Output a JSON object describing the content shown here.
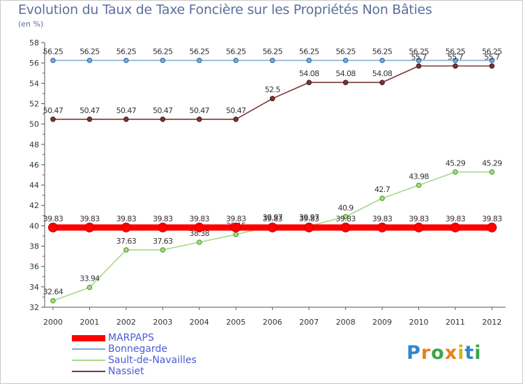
{
  "title": "Evolution du Taux de Taxe Foncière sur les Propriétés Non Bâties",
  "subtitle": "(en %)",
  "logo": {
    "letters": [
      "P",
      "r",
      "o",
      "x",
      "i",
      "t",
      "i"
    ],
    "colors": [
      "#2f86cf",
      "#e8801c",
      "#3aa64a",
      "#e8801c",
      "#d7b31e",
      "#2f86cf",
      "#3aa64a"
    ]
  },
  "chart_data": {
    "type": "line",
    "x": [
      "2000",
      "2001",
      "2002",
      "2003",
      "2004",
      "2005",
      "2006",
      "2007",
      "2008",
      "2009",
      "2010",
      "2011",
      "2012"
    ],
    "ylim": [
      32,
      58
    ],
    "yticks": [
      "32",
      "34",
      "36",
      "38",
      "40",
      "42",
      "44",
      "46",
      "48",
      "50",
      "52",
      "54",
      "56",
      "58"
    ],
    "grid": false,
    "legend_position": "bottom-left",
    "series": [
      {
        "name": "MARPAPS",
        "color": "#ff0000",
        "values": [
          39.83,
          39.83,
          39.83,
          39.83,
          39.83,
          39.83,
          39.83,
          39.83,
          39.83,
          39.83,
          39.83,
          39.83,
          39.83
        ],
        "labels": [
          "39.83",
          "39.83",
          "39.83",
          "39.83",
          "39.83",
          "39.83",
          "39.83",
          "39.83",
          "39.83",
          "39.83",
          "39.83",
          "39.83",
          "39.83"
        ]
      },
      {
        "name": "Bonnegarde",
        "color": "#7fa8d6",
        "values": [
          56.25,
          56.25,
          56.25,
          56.25,
          56.25,
          56.25,
          56.25,
          56.25,
          56.25,
          56.25,
          56.25,
          56.25,
          56.25
        ],
        "labels": [
          "56.25",
          "56.25",
          "56.25",
          "56.25",
          "56.25",
          "56.25",
          "56.25",
          "56.25",
          "56.25",
          "56.25",
          "56.25",
          "56.25",
          "56.25"
        ]
      },
      {
        "name": "Sault-de-Navailles",
        "color": "#a8d888",
        "values": [
          32.64,
          33.94,
          37.63,
          37.63,
          38.38,
          39.15,
          39.97,
          39.97,
          40.9,
          42.7,
          43.98,
          45.29,
          45.29
        ],
        "labels": [
          "32.64",
          "33.94",
          "37.63",
          "37.63",
          "38.38",
          "39.15",
          "39.97",
          "39.97",
          "40.9",
          "42.7",
          "43.98",
          "45.29",
          "45.29"
        ]
      },
      {
        "name": "Nassiet",
        "color": "#7a3535",
        "values": [
          50.47,
          50.47,
          50.47,
          50.47,
          50.47,
          50.47,
          52.5,
          54.08,
          54.08,
          54.08,
          55.7,
          55.7,
          55.7
        ],
        "labels": [
          "50.47",
          "50.47",
          "50.47",
          "50.47",
          "50.47",
          "50.47",
          "52.5",
          "54.08",
          "54.08",
          "54.08",
          "55.7",
          "55.7",
          "55.7"
        ]
      }
    ]
  }
}
